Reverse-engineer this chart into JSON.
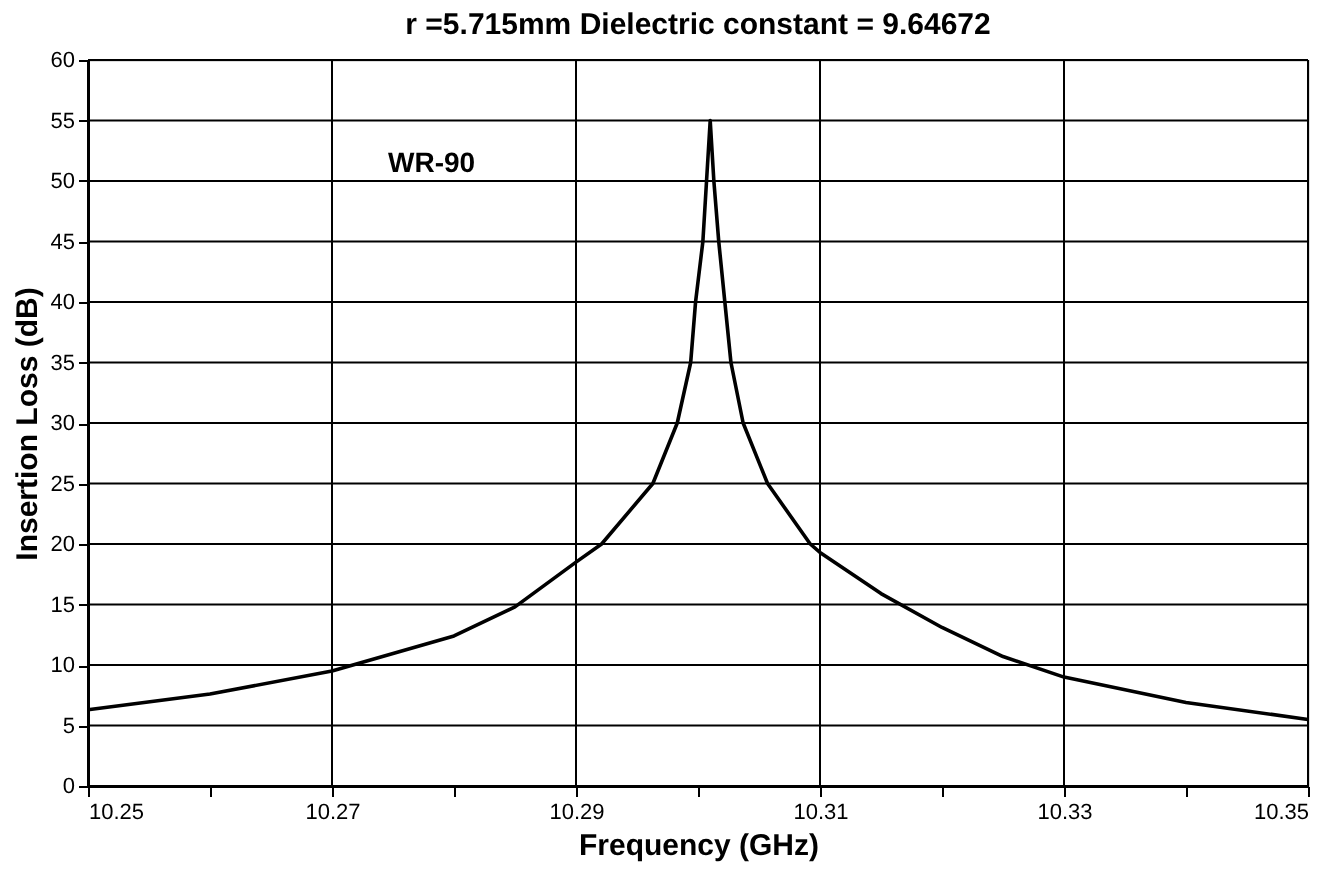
{
  "chart_data": {
    "type": "line",
    "title": "r =5.715mm Dielectric constant = 9.64672",
    "xlabel": "Frequency (GHz)",
    "ylabel": "Insertion Loss (dB)",
    "annotations": [
      "WR-90"
    ],
    "series": [
      {
        "color": "#000000",
        "x": [
          10.25,
          10.26,
          10.27,
          10.28,
          10.285,
          10.29,
          10.2921,
          10.2963,
          10.2983,
          10.2994,
          10.2998,
          10.3004,
          10.3007,
          10.301,
          10.3013,
          10.3017,
          10.3022,
          10.3027,
          10.3037,
          10.3057,
          10.3092,
          10.31,
          10.315,
          10.32,
          10.325,
          10.33,
          10.34,
          10.35
        ],
        "values": [
          6.3,
          7.6,
          9.5,
          12.4,
          14.8,
          18.5,
          20,
          25,
          30,
          35,
          40,
          45,
          50,
          55,
          50,
          45,
          40,
          35,
          30,
          25,
          20,
          19.3,
          15.9,
          13.1,
          10.7,
          9.0,
          6.9,
          5.5
        ]
      }
    ],
    "xlim": [
      10.25,
      10.35
    ],
    "xticks": [
      10.25,
      {
        "value": 10.26,
        "label": null
      },
      10.27,
      {
        "value": 10.28,
        "label": null
      },
      10.29,
      {
        "value": 10.3,
        "label": null
      },
      10.31,
      {
        "value": 10.32,
        "label": null
      },
      10.33,
      {
        "value": 10.34,
        "label": null
      },
      10.35
    ],
    "ylim": [
      0,
      60
    ],
    "yticks": [
      0,
      5,
      10,
      15,
      20,
      25,
      30,
      35,
      40,
      45,
      50,
      55,
      60
    ],
    "grid": true,
    "marker": "none",
    "line_style": "solid"
  }
}
